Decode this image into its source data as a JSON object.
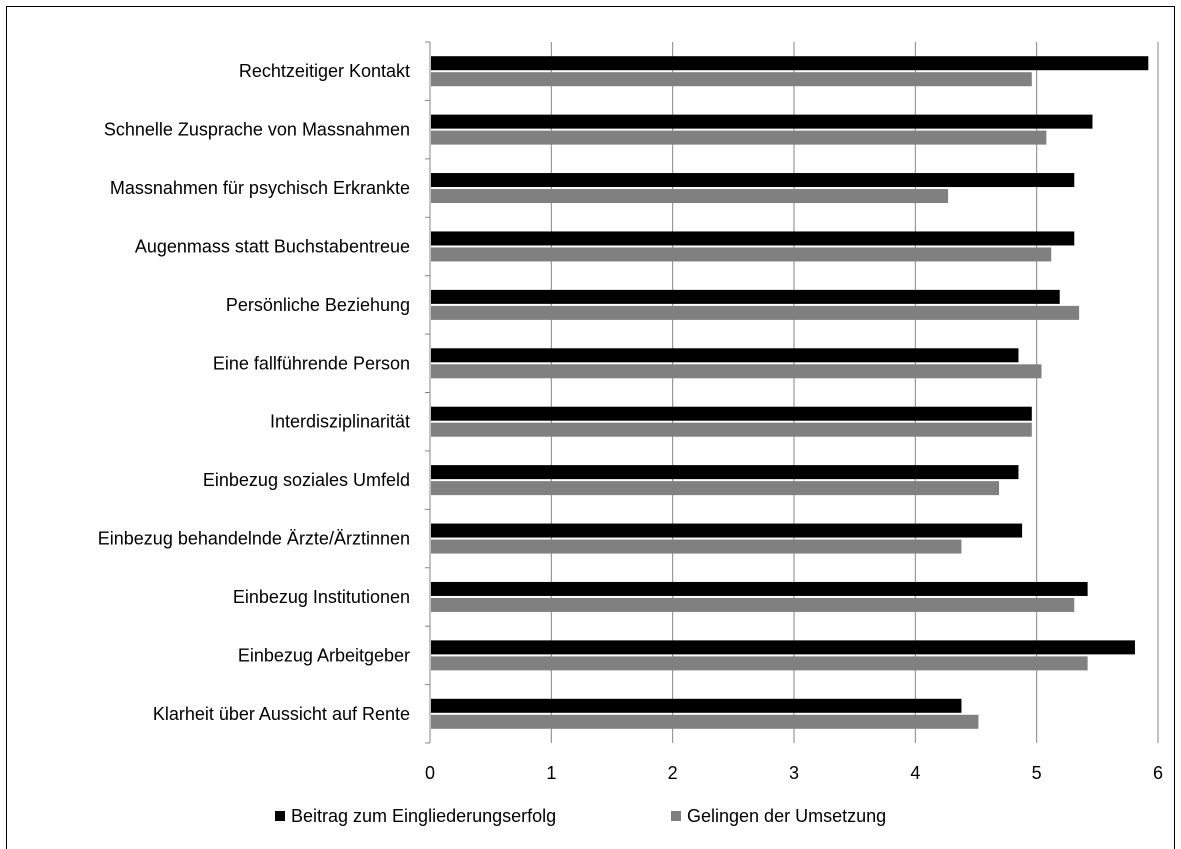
{
  "chart_data": {
    "type": "bar",
    "orientation": "horizontal",
    "categories": [
      "Rechtzeitiger Kontakt",
      "Schnelle Zusprache von Massnahmen",
      "Massnahmen für psychisch Erkrankte",
      "Augenmass statt Buchstabentreue",
      "Persönliche Beziehung",
      "Eine fallführende Person",
      "Interdisziplinarität",
      "Einbezug soziales Umfeld",
      "Einbezug behandelnde Ärzte/Ärztinnen",
      "Einbezug Institutionen",
      "Einbezug Arbeitgeber",
      "Klarheit über Aussicht auf Rente"
    ],
    "series": [
      {
        "name": "Beitrag zum Eingliederungserfolg",
        "color": "#000000",
        "values": [
          5.92,
          5.46,
          5.31,
          5.31,
          5.19,
          4.85,
          4.96,
          4.85,
          4.88,
          5.42,
          5.81,
          4.38
        ]
      },
      {
        "name": "Gelingen der Umsetzung",
        "color": "#808080",
        "values": [
          4.96,
          5.08,
          4.27,
          5.12,
          5.35,
          5.04,
          4.96,
          4.69,
          4.38,
          5.31,
          5.42,
          4.52
        ]
      }
    ],
    "xlim": [
      0,
      6
    ],
    "xticks": [
      "0",
      "1",
      "2",
      "3",
      "4",
      "5",
      "6"
    ],
    "grid": "vertical",
    "legend": "bottom",
    "title": "",
    "xlabel": "",
    "ylabel": ""
  }
}
